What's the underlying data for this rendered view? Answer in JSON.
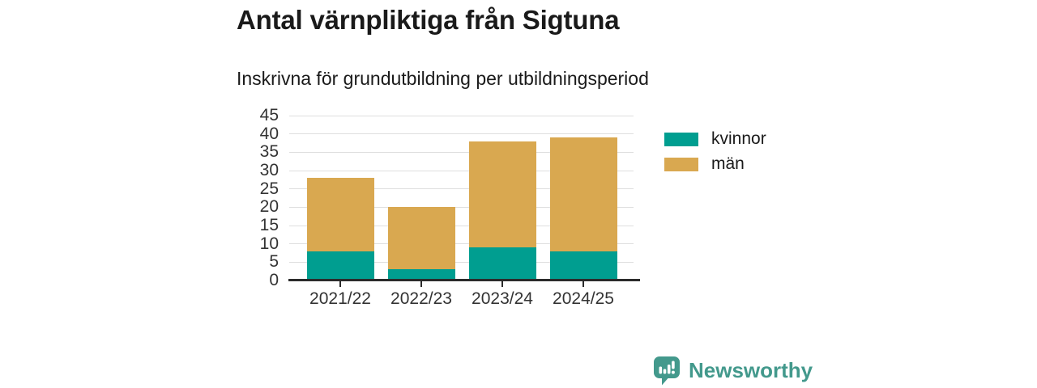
{
  "header": {
    "title": "Antal värnpliktiga från Sigtuna",
    "subtitle": "Inskrivna för grundutbildning per utbildningsperiod"
  },
  "colors": {
    "kvinnor": "#009e90",
    "man": "#d9a850",
    "brand": "#43998c",
    "grid": "#dedede",
    "axis": "#2b2b2b",
    "text": "#1a1a1a"
  },
  "chart_data": {
    "type": "bar",
    "stacked": true,
    "categories": [
      "2021/22",
      "2022/23",
      "2023/24",
      "2024/25"
    ],
    "series": [
      {
        "name": "kvinnor",
        "color": "#009e90",
        "values": [
          8,
          3,
          9,
          8
        ]
      },
      {
        "name": "män",
        "color": "#d9a850",
        "values": [
          20,
          17,
          29,
          31
        ]
      }
    ],
    "totals": [
      28,
      20,
      38,
      39
    ],
    "title": "Antal värnpliktiga från Sigtuna",
    "subtitle": "Inskrivna för grundutbildning per utbildningsperiod",
    "xlabel": "",
    "ylabel": "",
    "ylim": [
      0,
      45
    ],
    "ytick_step": 5,
    "yticks": [
      0,
      5,
      10,
      15,
      20,
      25,
      30,
      35,
      40,
      45
    ],
    "grid": true,
    "legend_position": "right"
  },
  "legend": {
    "items": [
      {
        "label": "kvinnor",
        "color": "#009e90"
      },
      {
        "label": "män",
        "color": "#d9a850"
      }
    ]
  },
  "footer": {
    "brand": "Newsworthy",
    "logo_icon": "speech-bubble-bar-chart-exclamation"
  }
}
